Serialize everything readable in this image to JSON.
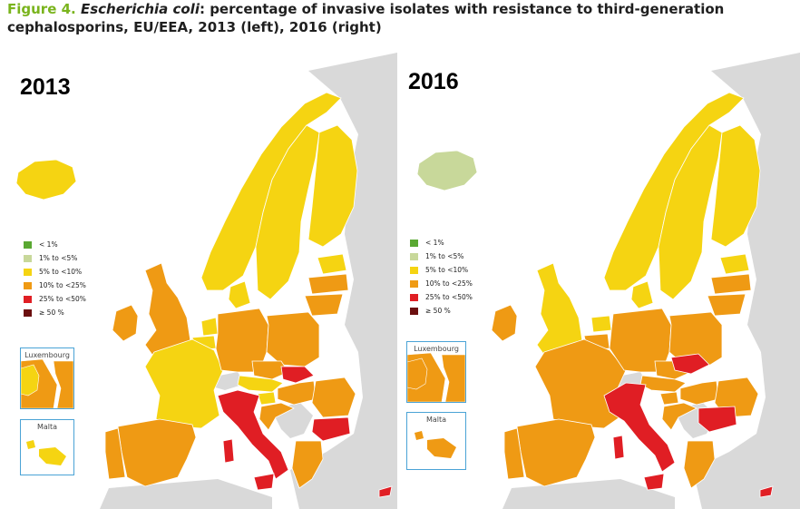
{
  "title": {
    "figure_label": "Figure 4.",
    "species": "Escherichia coli",
    "rest_line1": ": percentage of invasive isolates with resistance to third-generation",
    "line2": "cephalosporins, EU/EEA, 2013 (left), 2016 (right)"
  },
  "legend": {
    "items": [
      {
        "label": "< 1%",
        "color": "#5aa832"
      },
      {
        "label": "1% to <5%",
        "color": "#c8d89a"
      },
      {
        "label": "5% to <10%",
        "color": "#f5d412"
      },
      {
        "label": "10% to <25%",
        "color": "#ef9a14"
      },
      {
        "label": "25% to <50%",
        "color": "#e01e24"
      },
      {
        "label": "≥ 50 %",
        "color": "#6b0f0f"
      }
    ]
  },
  "colors": {
    "no_data": "#d9d9d9",
    "sea": "#ffffff",
    "border": "#ffffff"
  },
  "maps": [
    {
      "year": "2013",
      "inset_luxembourg": "Luxembourg",
      "inset_malta": "Malta",
      "countries": {
        "iceland": "5% to <10%",
        "ireland": "10% to <25%",
        "uk": "10% to <25%",
        "norway": "5% to <10%",
        "sweden": "5% to <10%",
        "finland": "5% to <10%",
        "estonia": "5% to <10%",
        "latvia": "10% to <25%",
        "lithuania": "10% to <25%",
        "denmark": "5% to <10%",
        "netherlands": "5% to <10%",
        "belgium": "5% to <10%",
        "luxembourg": "10% to <25%",
        "france": "5% to <10%",
        "germany": "10% to <25%",
        "poland": "10% to <25%",
        "czechia": "10% to <25%",
        "slovakia": "25% to <50%",
        "austria": "5% to <10%",
        "hungary": "10% to <25%",
        "slovenia": "5% to <10%",
        "croatia": "10% to <25%",
        "romania": "10% to <25%",
        "bulgaria": "25% to <50%",
        "greece": "10% to <25%",
        "italy": "25% to <50%",
        "spain": "10% to <25%",
        "portugal": "10% to <25%",
        "cyprus": "25% to <50%",
        "malta": "5% to <10%"
      }
    },
    {
      "year": "2016",
      "inset_luxembourg": "Luxembourg",
      "inset_malta": "Malta",
      "countries": {
        "iceland": "1% to <5%",
        "ireland": "10% to <25%",
        "uk": "5% to <10%",
        "norway": "5% to <10%",
        "sweden": "5% to <10%",
        "finland": "5% to <10%",
        "estonia": "5% to <10%",
        "latvia": "10% to <25%",
        "lithuania": "10% to <25%",
        "denmark": "5% to <10%",
        "netherlands": "5% to <10%",
        "belgium": "10% to <25%",
        "luxembourg": "10% to <25%",
        "france": "10% to <25%",
        "germany": "10% to <25%",
        "poland": "10% to <25%",
        "czechia": "10% to <25%",
        "slovakia": "25% to <50%",
        "austria": "10% to <25%",
        "hungary": "10% to <25%",
        "slovenia": "10% to <25%",
        "croatia": "10% to <25%",
        "romania": "10% to <25%",
        "bulgaria": "25% to <50%",
        "greece": "10% to <25%",
        "italy": "25% to <50%",
        "spain": "10% to <25%",
        "portugal": "10% to <25%",
        "cyprus": "25% to <50%",
        "malta": "10% to <25%"
      }
    }
  ]
}
